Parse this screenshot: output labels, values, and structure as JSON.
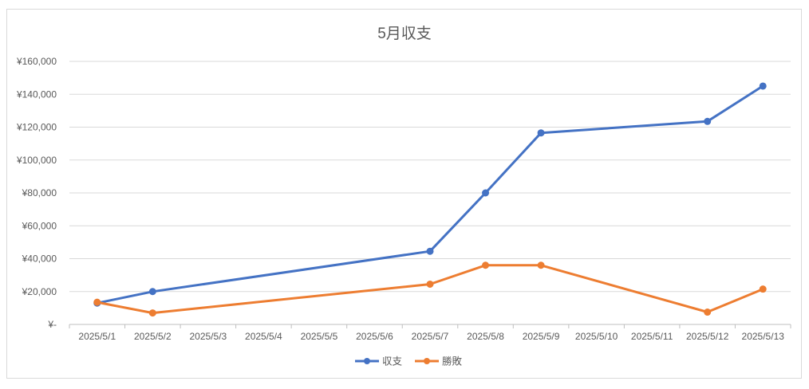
{
  "chart_data": {
    "type": "line",
    "title": "5月収支",
    "categories": [
      "2025/5/1",
      "2025/5/2",
      "2025/5/3",
      "2025/5/4",
      "2025/5/5",
      "2025/5/6",
      "2025/5/7",
      "2025/5/8",
      "2025/5/9",
      "2025/5/10",
      "2025/5/11",
      "2025/5/12",
      "2025/5/13"
    ],
    "series": [
      {
        "name": "収支",
        "color": "#4472c4",
        "values": [
          13000,
          20000,
          null,
          null,
          null,
          null,
          44500,
          80000,
          116500,
          null,
          null,
          123500,
          145000
        ]
      },
      {
        "name": "勝敗",
        "color": "#ed7d31",
        "values": [
          13500,
          7000,
          null,
          null,
          null,
          null,
          24500,
          36000,
          36000,
          null,
          null,
          7500,
          21500
        ]
      }
    ],
    "ylim": [
      0,
      160000
    ],
    "yticks": [
      0,
      20000,
      40000,
      60000,
      80000,
      100000,
      120000,
      140000,
      160000
    ],
    "ytick_labels": [
      "¥-",
      "¥20,000",
      "¥40,000",
      "¥60,000",
      "¥80,000",
      "¥100,000",
      "¥120,000",
      "¥140,000",
      "¥160,000"
    ],
    "xlabel": "",
    "ylabel": "",
    "grid": true,
    "legend_position": "bottom"
  }
}
